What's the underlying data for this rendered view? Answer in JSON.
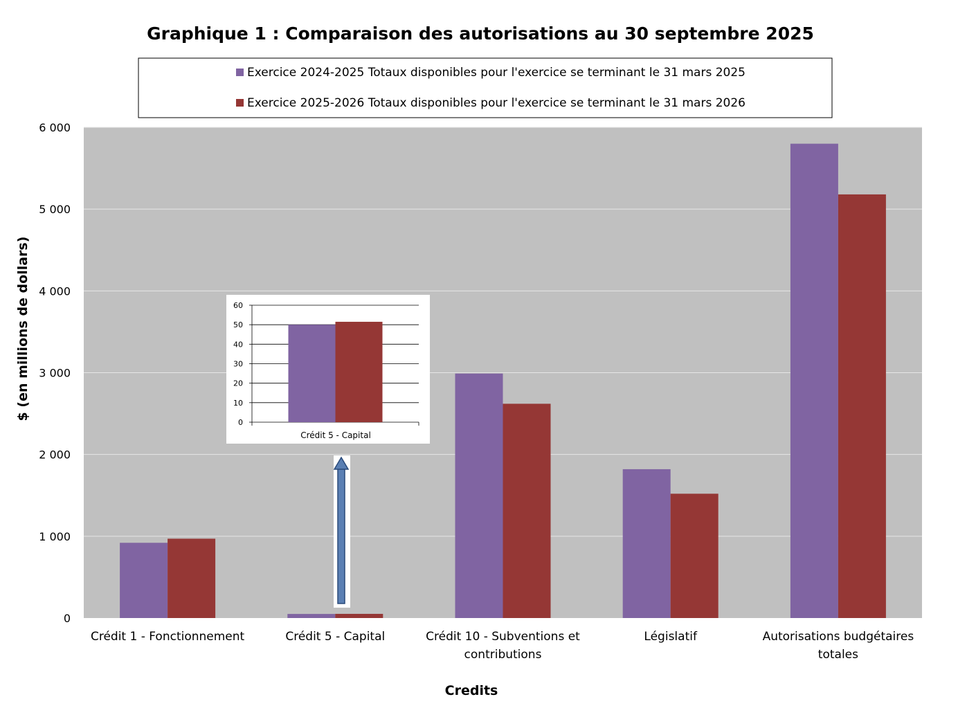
{
  "chart_data": {
    "type": "bar",
    "title": "Graphique 1 : Comparaison des autorisations au 30 septembre 2025",
    "xlabel": "Credits",
    "ylabel": "$ (en millions de dollars)",
    "ylim": [
      0,
      6000
    ],
    "yticks": [
      0,
      1000,
      2000,
      3000,
      4000,
      5000,
      6000
    ],
    "ytick_labels": [
      "0",
      "1 000",
      "2 000",
      "3 000",
      "4 000",
      "5 000",
      "6 000"
    ],
    "categories": [
      [
        "Crédit 1 - Fonctionnement"
      ],
      [
        "Crédit 5 - Capital"
      ],
      [
        "Crédit 10 - Subventions et",
        "contributions"
      ],
      [
        "Législatif"
      ],
      [
        "Autorisations budgétaires",
        "totales"
      ]
    ],
    "series": [
      {
        "name": "Exercice 2024-2025 Totaux disponibles pour l'exercice se terminant le 31 mars 2025",
        "color": "#8064a2",
        "values": [
          920,
          50,
          2990,
          1820,
          5800
        ]
      },
      {
        "name": "Exercice 2025-2026 Totaux disponibles pour l'exercice se terminant le 31 mars 2026",
        "color": "#953735",
        "values": [
          970,
          51,
          2620,
          1520,
          5180
        ]
      }
    ],
    "plot_background": "#c0c0c0",
    "grid": true,
    "legend_position": "top",
    "inset": {
      "category": "Crédit 5 - Capital",
      "ylim": [
        0,
        60
      ],
      "yticks": [
        0,
        10,
        20,
        30,
        40,
        50,
        60
      ],
      "ytick_labels": [
        "0",
        "10",
        "20",
        "30",
        "40",
        "50",
        "60"
      ],
      "values": [
        50,
        51.5
      ]
    }
  }
}
